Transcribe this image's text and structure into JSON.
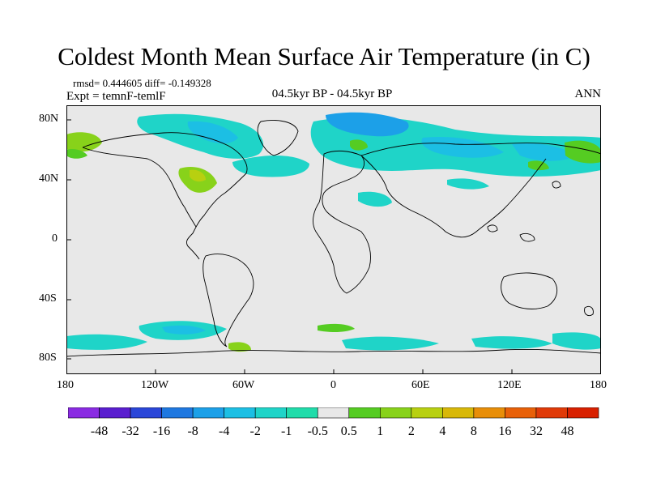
{
  "title": "Coldest Month Mean Surface Air Temperature (in C)",
  "stats": "rmsd= 0.444605 diff= -0.149328",
  "experiment": "Expt = temnF-temlF",
  "center_label": "04.5kyr BP - 04.5kyr BP",
  "period": "ANN",
  "lat_ticks": [
    "80N",
    "40N",
    "0",
    "40S",
    "80S"
  ],
  "lon_ticks": [
    "180",
    "120W",
    "60W",
    "0",
    "60E",
    "120E",
    "180"
  ],
  "colorbar": {
    "labels": [
      "-48",
      "-32",
      "-16",
      "-8",
      "-4",
      "-2",
      "-1",
      "-0.5",
      "0.5",
      "1",
      "2",
      "4",
      "8",
      "16",
      "32",
      "48"
    ],
    "colors": [
      "#8a2be2",
      "#5a1ecf",
      "#2a46d8",
      "#1f78e0",
      "#1ca0e8",
      "#1cbfe4",
      "#1fd4c8",
      "#20dcaa",
      "#e8e8e8",
      "#55cc22",
      "#88d21a",
      "#b8d010",
      "#d8b808",
      "#e88e08",
      "#e86008",
      "#e03a08",
      "#d82000"
    ]
  },
  "colors": {
    "background_field": "#e8e8e8",
    "negative_small": "#1fd4c8",
    "negative_medium": "#1cbfe4",
    "negative_large": "#1ca0e8",
    "positive_small": "#55cc22",
    "positive_medium": "#88d21a"
  }
}
